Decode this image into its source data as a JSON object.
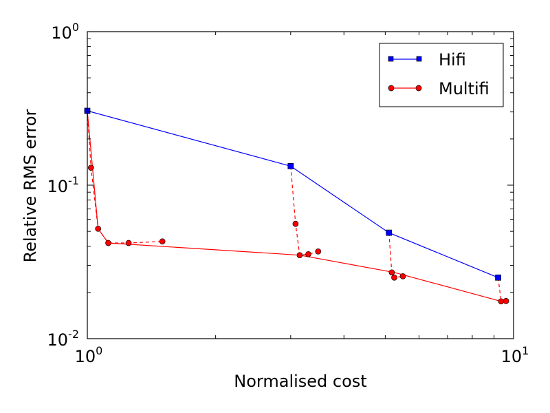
{
  "chart_data": {
    "type": "line",
    "xlabel": "Normalised cost",
    "ylabel": "Relative RMS error",
    "xscale": "log",
    "yscale": "log",
    "xlim": [
      1,
      10
    ],
    "ylim": [
      0.01,
      1
    ],
    "xticks": [
      {
        "base": "10",
        "exp": "0",
        "value": 1
      },
      {
        "base": "10",
        "exp": "1",
        "value": 10
      }
    ],
    "yticks": [
      {
        "base": "10",
        "exp": "-2",
        "value": 0.01
      },
      {
        "base": "10",
        "exp": "-1",
        "value": 0.1
      },
      {
        "base": "10",
        "exp": "0",
        "value": 1
      }
    ],
    "grid": false,
    "legend_position": "top-right",
    "series": [
      {
        "name": "Hifi",
        "color": "#0000ff",
        "marker": "square",
        "points": [
          [
            1.0,
            0.305
          ],
          [
            3.0,
            0.133
          ],
          [
            5.1,
            0.049
          ],
          [
            9.2,
            0.025
          ]
        ]
      },
      {
        "name": "Multifi",
        "color": "#ff0000",
        "marker": "circle",
        "points": [
          [
            1.0,
            0.305
          ],
          [
            1.06,
            0.052
          ],
          [
            1.12,
            0.042
          ],
          [
            3.15,
            0.035
          ],
          [
            5.25,
            0.027
          ],
          [
            9.35,
            0.0175
          ]
        ]
      }
    ],
    "dashed_branches": [
      {
        "color": "#ff0000",
        "points": [
          [
            1.0,
            0.305
          ],
          [
            1.02,
            0.13
          ],
          [
            1.06,
            0.052
          ],
          [
            1.12,
            0.042
          ],
          [
            1.25,
            0.042
          ],
          [
            1.5,
            0.043
          ]
        ]
      },
      {
        "color": "#ff0000",
        "points": [
          [
            3.0,
            0.133
          ],
          [
            3.08,
            0.056
          ],
          [
            3.15,
            0.035
          ],
          [
            3.3,
            0.0355
          ],
          [
            3.48,
            0.037
          ]
        ]
      },
      {
        "color": "#ff0000",
        "points": [
          [
            5.1,
            0.049
          ],
          [
            5.18,
            0.027
          ],
          [
            5.25,
            0.025
          ],
          [
            5.5,
            0.0255
          ]
        ]
      },
      {
        "color": "#ff0000",
        "points": [
          [
            9.2,
            0.025
          ],
          [
            9.35,
            0.0175
          ],
          [
            9.6,
            0.0176
          ]
        ]
      }
    ]
  }
}
